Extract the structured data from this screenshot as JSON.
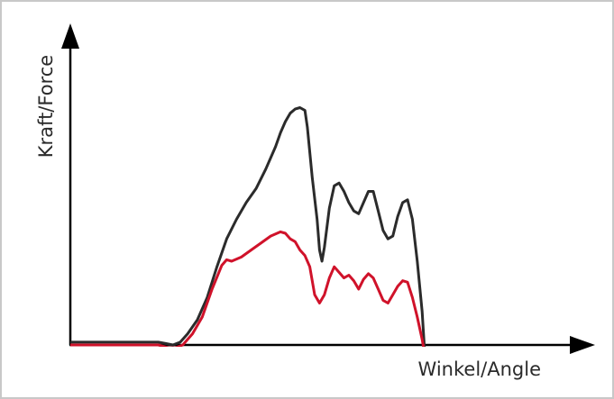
{
  "chart_data": {
    "type": "line",
    "xlabel": "Winkel/Angle",
    "ylabel": "Kraft/Force",
    "xlim": [
      0,
      100
    ],
    "ylim": [
      0,
      100
    ],
    "grid": false,
    "series": [
      {
        "color": "#2b2b2b",
        "points": [
          [
            0,
            11
          ],
          [
            18,
            11
          ],
          [
            19.5,
            10.5
          ],
          [
            21,
            10
          ],
          [
            22.5,
            11
          ],
          [
            24,
            14
          ],
          [
            26,
            19
          ],
          [
            28,
            27
          ],
          [
            30,
            38
          ],
          [
            32,
            48
          ],
          [
            34,
            55
          ],
          [
            36,
            61
          ],
          [
            38,
            66
          ],
          [
            40,
            73
          ],
          [
            42,
            81
          ],
          [
            43,
            86
          ],
          [
            44,
            90
          ],
          [
            45,
            93
          ],
          [
            46,
            94.5
          ],
          [
            47,
            95
          ],
          [
            48,
            94
          ],
          [
            48.5,
            88
          ],
          [
            49.5,
            70
          ],
          [
            50.5,
            55
          ],
          [
            51,
            44
          ],
          [
            51.5,
            40
          ],
          [
            52,
            45
          ],
          [
            53,
            59
          ],
          [
            54,
            67
          ],
          [
            55,
            68
          ],
          [
            56,
            65
          ],
          [
            57,
            61
          ],
          [
            58,
            58
          ],
          [
            59,
            57
          ],
          [
            60,
            61
          ],
          [
            61,
            65
          ],
          [
            62,
            65
          ],
          [
            63,
            58
          ],
          [
            64,
            51
          ],
          [
            65,
            48
          ],
          [
            66,
            49
          ],
          [
            67,
            56
          ],
          [
            68,
            61
          ],
          [
            69,
            62
          ],
          [
            70,
            55
          ],
          [
            71,
            40
          ],
          [
            72,
            22
          ],
          [
            72.5,
            8
          ],
          [
            73,
            4
          ],
          [
            74,
            5.5
          ],
          [
            75,
            5
          ],
          [
            76,
            4.5
          ],
          [
            100,
            4.5
          ]
        ]
      },
      {
        "color": "#d0122a",
        "points": [
          [
            0,
            10
          ],
          [
            18,
            10
          ],
          [
            20,
            9
          ],
          [
            21.5,
            9
          ],
          [
            23,
            10
          ],
          [
            25,
            14
          ],
          [
            27,
            20
          ],
          [
            29,
            30
          ],
          [
            31,
            38.5
          ],
          [
            32,
            40.5
          ],
          [
            33,
            40
          ],
          [
            35,
            41.5
          ],
          [
            37,
            44
          ],
          [
            39,
            46.5
          ],
          [
            41,
            49
          ],
          [
            43,
            50.5
          ],
          [
            44,
            50
          ],
          [
            45,
            48
          ],
          [
            46,
            47
          ],
          [
            47,
            44
          ],
          [
            48,
            42
          ],
          [
            49,
            38
          ],
          [
            50,
            28
          ],
          [
            51,
            25
          ],
          [
            52,
            28
          ],
          [
            53,
            34
          ],
          [
            54,
            38
          ],
          [
            55,
            36
          ],
          [
            56,
            34
          ],
          [
            57,
            35
          ],
          [
            58,
            33
          ],
          [
            59,
            30
          ],
          [
            60,
            33.5
          ],
          [
            61,
            35.5
          ],
          [
            62,
            34
          ],
          [
            63,
            30
          ],
          [
            64,
            26
          ],
          [
            65,
            25
          ],
          [
            66,
            28
          ],
          [
            67,
            31
          ],
          [
            68,
            33
          ],
          [
            69,
            32.5
          ],
          [
            70,
            27
          ],
          [
            71,
            20
          ],
          [
            72,
            12
          ],
          [
            72.5,
            7
          ],
          [
            73,
            2.5
          ],
          [
            74,
            3.5
          ],
          [
            75,
            4
          ],
          [
            76,
            3.5
          ],
          [
            100,
            3.5
          ]
        ]
      }
    ]
  }
}
